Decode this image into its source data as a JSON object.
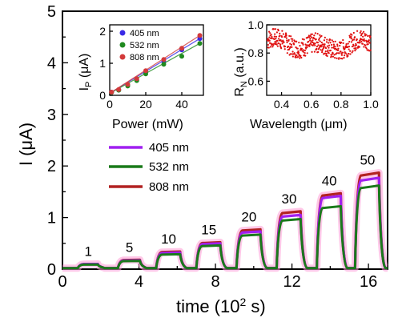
{
  "chart_data": [
    {
      "type": "line",
      "panel": "main",
      "xlabel": "time (10² s)",
      "ylabel": "I (μA)",
      "xlim": [
        0,
        17
      ],
      "ylim": [
        0,
        5
      ],
      "xticks": [
        0,
        4,
        8,
        12,
        16
      ],
      "yticks": [
        0,
        1,
        2,
        3,
        4,
        5
      ],
      "legend": {
        "placement": "center-left",
        "entries": [
          "405 nm",
          "532 nm",
          "808 nm"
        ]
      },
      "pulses": [
        {
          "label": "1",
          "on": 0.8,
          "off": 1.9,
          "i405": 0.1,
          "i532": 0.09,
          "i808": 0.1
        },
        {
          "label": "5",
          "on": 2.9,
          "off": 4.1,
          "i405": 0.17,
          "i532": 0.16,
          "i808": 0.18
        },
        {
          "label": "10",
          "on": 4.9,
          "off": 6.2,
          "i405": 0.32,
          "i532": 0.29,
          "i808": 0.34
        },
        {
          "label": "15",
          "on": 7.0,
          "off": 8.3,
          "i405": 0.5,
          "i532": 0.46,
          "i808": 0.52
        },
        {
          "label": "20",
          "on": 9.1,
          "off": 10.4,
          "i405": 0.73,
          "i532": 0.67,
          "i808": 0.77
        },
        {
          "label": "30",
          "on": 11.2,
          "off": 12.5,
          "i405": 1.05,
          "i532": 0.97,
          "i808": 1.12
        },
        {
          "label": "40",
          "on": 13.3,
          "off": 14.6,
          "i405": 1.42,
          "i532": 1.22,
          "i808": 1.47
        },
        {
          "label": "50",
          "on": 15.3,
          "off": 16.6,
          "i405": 1.77,
          "i532": 1.62,
          "i808": 1.87
        }
      ],
      "series": [
        {
          "name": "405 nm",
          "color": "#a020f0"
        },
        {
          "name": "532 nm",
          "color": "#1a7a1a"
        },
        {
          "name": "808 nm",
          "color": "#b22222"
        }
      ]
    },
    {
      "type": "scatter",
      "panel": "inset-left",
      "xlabel": "Power (mW)",
      "ylabel": "I_P (μA)",
      "xlim": [
        0,
        52
      ],
      "ylim": [
        0,
        2.2
      ],
      "xticks": [
        0,
        20,
        40
      ],
      "yticks": [
        0,
        1,
        2
      ],
      "legend": {
        "placement": "top-right",
        "entries": [
          "405 nm",
          "532 nm",
          "808 nm"
        ]
      },
      "x": [
        1,
        5,
        10,
        15,
        20,
        30,
        40,
        50
      ],
      "series": [
        {
          "name": "405 nm",
          "color": "#3a2ae6",
          "values": [
            0.1,
            0.17,
            0.32,
            0.5,
            0.73,
            1.05,
            1.42,
            1.77
          ]
        },
        {
          "name": "532 nm",
          "color": "#1f8a1f",
          "values": [
            0.09,
            0.16,
            0.29,
            0.46,
            0.67,
            0.97,
            1.22,
            1.62
          ]
        },
        {
          "name": "808 nm",
          "color": "#d33a3a",
          "values": [
            0.1,
            0.18,
            0.34,
            0.52,
            0.77,
            1.12,
            1.47,
            1.87
          ]
        }
      ]
    },
    {
      "type": "scatter",
      "panel": "inset-right",
      "xlabel": "Wavelength (μm)",
      "ylabel": "R_N (a.u.)",
      "xlim": [
        0.3,
        1.0
      ],
      "ylim": [
        0.5,
        1.0
      ],
      "xticks": [
        0.4,
        0.6,
        0.8,
        1.0
      ],
      "yticks": [
        0.6,
        0.8,
        1.0
      ],
      "color": "#e01010",
      "y_range": [
        0.72,
        0.97
      ],
      "mean": 0.86
    }
  ],
  "labels": {
    "main_x_title": "time (10",
    "main_x_sup": "2",
    "main_x_tail": " s)",
    "main_y_title": "I (μA)",
    "inset1_x_title": "Power (mW)",
    "inset1_y_title_a": "I",
    "inset1_y_title_sub": "P",
    "inset1_y_title_b": " (μA)",
    "inset2_x_title": "Wavelength (μm)",
    "inset2_y_title_a": "R",
    "inset2_y_title_sub": "N",
    "inset2_y_title_b": " (a.u.)"
  }
}
